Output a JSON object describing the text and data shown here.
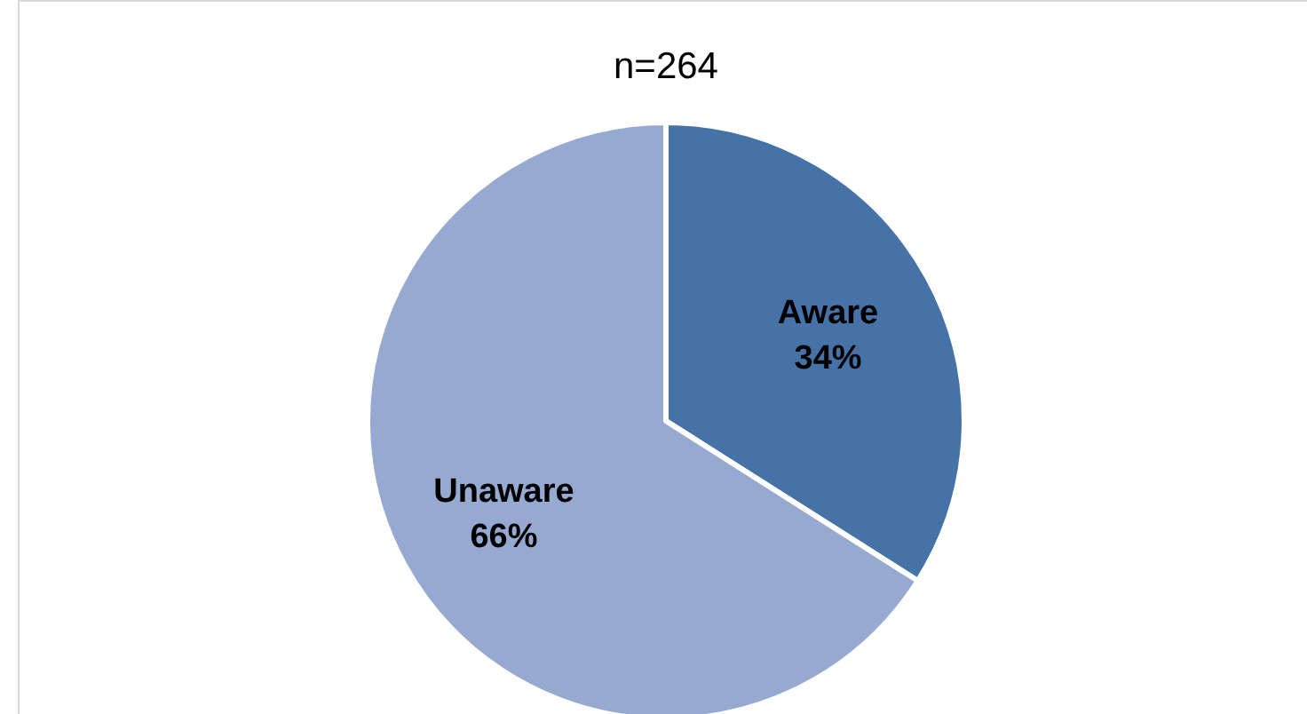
{
  "chart_data": {
    "type": "pie",
    "title": "n=264",
    "categories": [
      "Aware",
      "Unaware"
    ],
    "values": [
      34,
      66
    ],
    "colors": [
      "#4572a7",
      "#95a9d1"
    ],
    "value_labels": [
      "34%",
      "66%"
    ]
  }
}
